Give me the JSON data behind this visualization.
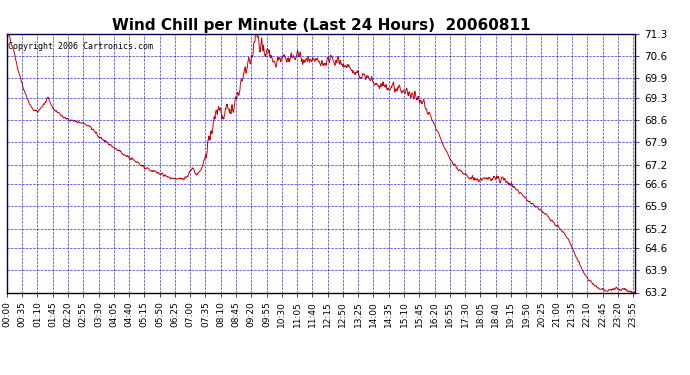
{
  "title": "Wind Chill per Minute (Last 24 Hours)  20060811",
  "copyright_text": "Copyright 2006 Cartronics.com",
  "ylim": [
    63.2,
    71.3
  ],
  "yticks": [
    71.3,
    70.6,
    69.9,
    69.3,
    68.6,
    67.9,
    67.2,
    66.6,
    65.9,
    65.2,
    64.6,
    63.9,
    63.2
  ],
  "line_color": "#cc0000",
  "bg_color": "#ffffff",
  "plot_bg_color": "#ffffff",
  "grid_color": "#0000cc",
  "title_fontsize": 11,
  "copyright_fontsize": 6,
  "tick_fontsize": 7.5,
  "xtick_fontsize": 6.5,
  "xtick_step": 35
}
